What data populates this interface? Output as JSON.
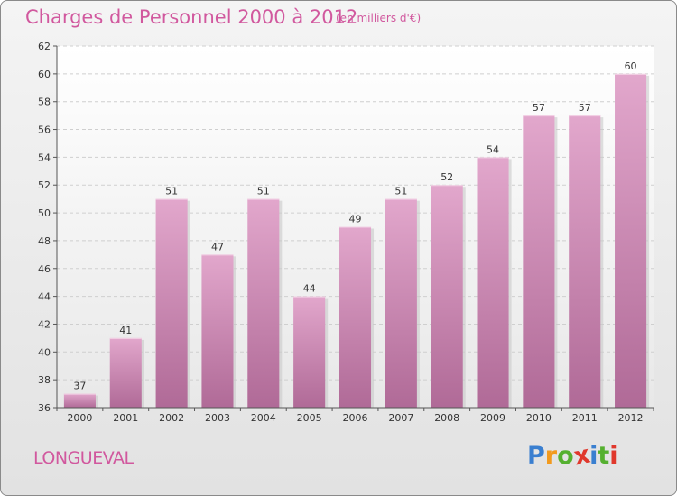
{
  "title": "Charges de Personnel 2000 à 2012",
  "subtitle": "(en milliers d'€)",
  "commune": "LONGUEVAL",
  "logo": {
    "text": "Proxiti",
    "letters": [
      "P",
      "r",
      "o",
      "x",
      "i",
      "t",
      "i"
    ],
    "letter_colors": [
      "#3a7fd0",
      "#f29a1e",
      "#55b030",
      "#e0382c",
      "#3a7fd0",
      "#55b030",
      "#e0382c"
    ]
  },
  "chart_data": {
    "type": "bar",
    "categories": [
      "2000",
      "2001",
      "2002",
      "2003",
      "2004",
      "2005",
      "2006",
      "2007",
      "2008",
      "2009",
      "2010",
      "2011",
      "2012"
    ],
    "values": [
      37,
      41,
      51,
      47,
      51,
      44,
      49,
      51,
      52,
      54,
      57,
      57,
      60
    ],
    "ylim": [
      36,
      62
    ],
    "yticks": [
      36,
      38,
      40,
      42,
      44,
      46,
      48,
      50,
      52,
      54,
      56,
      58,
      60,
      62
    ],
    "grid": true,
    "bar_color_top": "#e2a7cc",
    "bar_color_bottom": "#b06a97"
  }
}
